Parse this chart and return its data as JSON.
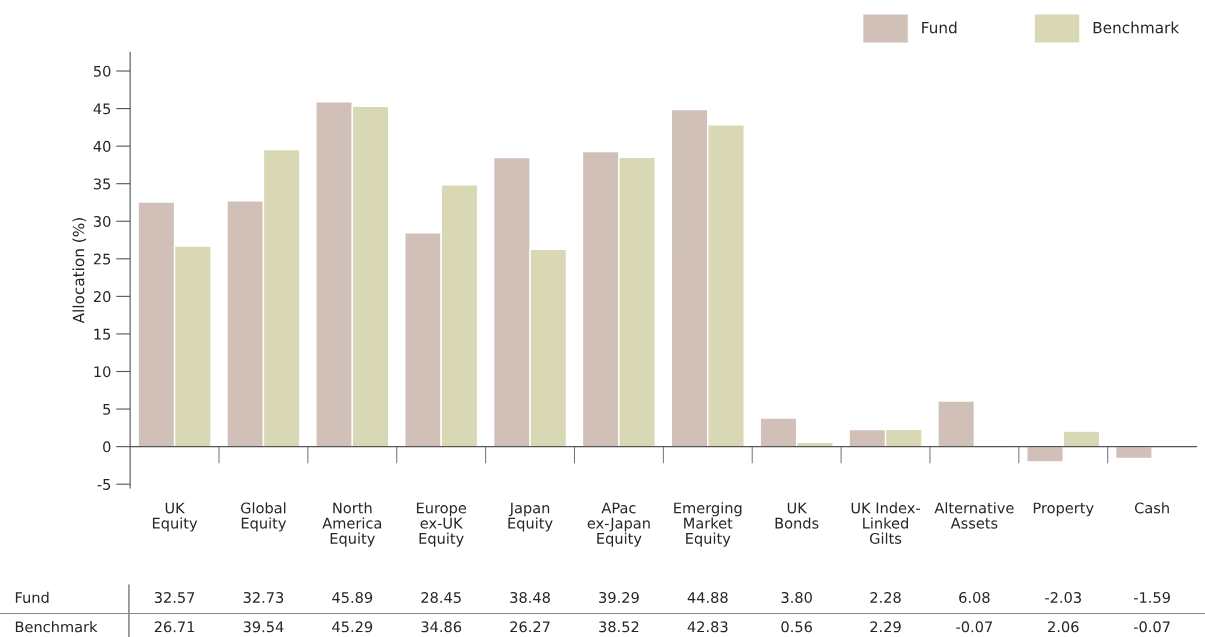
{
  "chart_data": {
    "type": "bar",
    "ylabel": "Allocation (%)",
    "categories": [
      "UK\nEquity",
      "Global\nEquity",
      "North\nAmerica\nEquity",
      "Europe\nex-UK\nEquity",
      "Japan\nEquity",
      "APac\nex-Japan\nEquity",
      "Emerging\nMarket\nEquity",
      "UK\nBonds",
      "UK Index-\nLinked\nGilts",
      "Alternative\nAssets",
      "Property",
      "Cash"
    ],
    "series": [
      {
        "name": "Fund",
        "color": "#d0c0b8",
        "values": [
          32.57,
          32.73,
          45.89,
          28.45,
          38.48,
          39.29,
          44.88,
          3.8,
          2.28,
          6.08,
          -2.03,
          -1.59
        ],
        "value_labels": [
          "32.57",
          "32.73",
          "45.89",
          "28.45",
          "38.48",
          "39.29",
          "44.88",
          "3.80",
          "2.28",
          "6.08",
          "-2.03",
          "-1.59"
        ]
      },
      {
        "name": "Benchmark",
        "color": "#d8d8b4",
        "values": [
          26.71,
          39.54,
          45.29,
          34.86,
          26.27,
          38.52,
          42.83,
          0.56,
          2.29,
          -0.07,
          2.06,
          -0.07
        ],
        "value_labels": [
          "26.71",
          "39.54",
          "45.29",
          "34.86",
          "26.27",
          "38.52",
          "42.83",
          "0.56",
          "2.29",
          "-0.07",
          "2.06",
          "-0.07"
        ]
      }
    ],
    "ylim": [
      -5.5,
      52.5
    ],
    "yticks": [
      -5,
      0,
      5,
      10,
      15,
      20,
      25,
      30,
      35,
      40,
      45,
      50
    ],
    "legend": "top right"
  }
}
